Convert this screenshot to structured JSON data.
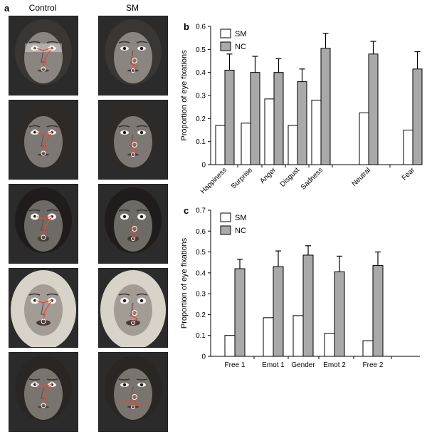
{
  "panels": {
    "a": {
      "label": "a",
      "columns": [
        "Control",
        "SM"
      ],
      "rows": [
        {
          "hair": "#3a3634",
          "skin": "#8a8580",
          "expression": "neutral"
        },
        {
          "hair": "#2e2a28",
          "skin": "#7d7873",
          "expression": "sad"
        },
        {
          "hair": "#1f1c1b",
          "skin": "#6e6a66",
          "expression": "surprise"
        },
        {
          "hair": "#d8d3c8",
          "skin": "#a29c95",
          "expression": "fear"
        },
        {
          "hair": "#2a2624",
          "skin": "#7a746f",
          "expression": "anger"
        }
      ]
    }
  },
  "chart_data": [
    {
      "panel": "b",
      "type": "bar",
      "ylabel": "Proportion of eye fixations",
      "ylim": [
        0,
        0.6
      ],
      "yticks": [
        "0",
        "0.1",
        "0.2",
        "0.3",
        "0.4",
        "0.5",
        "0.6"
      ],
      "categories": [
        "Happiness",
        "Surprise",
        "Anger",
        "Disgust",
        "Sadness",
        "Neutral",
        "Fear"
      ],
      "series": [
        {
          "name": "SM",
          "color": "#ffffff",
          "values": [
            0.17,
            0.18,
            0.285,
            0.17,
            0.28,
            0.225,
            0.15
          ]
        },
        {
          "name": "NC",
          "color": "#a9a9a9",
          "values": [
            0.41,
            0.4,
            0.4,
            0.36,
            0.505,
            0.48,
            0.415
          ],
          "errors": [
            0.07,
            0.07,
            0.06,
            0.055,
            0.065,
            0.055,
            0.075
          ]
        }
      ],
      "legend": "top-left"
    },
    {
      "panel": "c",
      "type": "bar",
      "ylabel": "Proportion of eye fixations",
      "ylim": [
        0,
        0.7
      ],
      "yticks": [
        "0",
        "0.1",
        "0.2",
        "0.3",
        "0.4",
        "0.5",
        "0.6",
        "0.7"
      ],
      "categories": [
        "Free 1",
        "Emot 1",
        "Gender",
        "Emot 2",
        "Free 2"
      ],
      "series": [
        {
          "name": "SM",
          "color": "#ffffff",
          "values": [
            0.1,
            0.185,
            0.195,
            0.11,
            0.075
          ]
        },
        {
          "name": "NC",
          "color": "#a9a9a9",
          "values": [
            0.42,
            0.43,
            0.485,
            0.405,
            0.435
          ],
          "errors": [
            0.045,
            0.075,
            0.045,
            0.075,
            0.065
          ]
        }
      ],
      "legend": "top-left"
    }
  ]
}
